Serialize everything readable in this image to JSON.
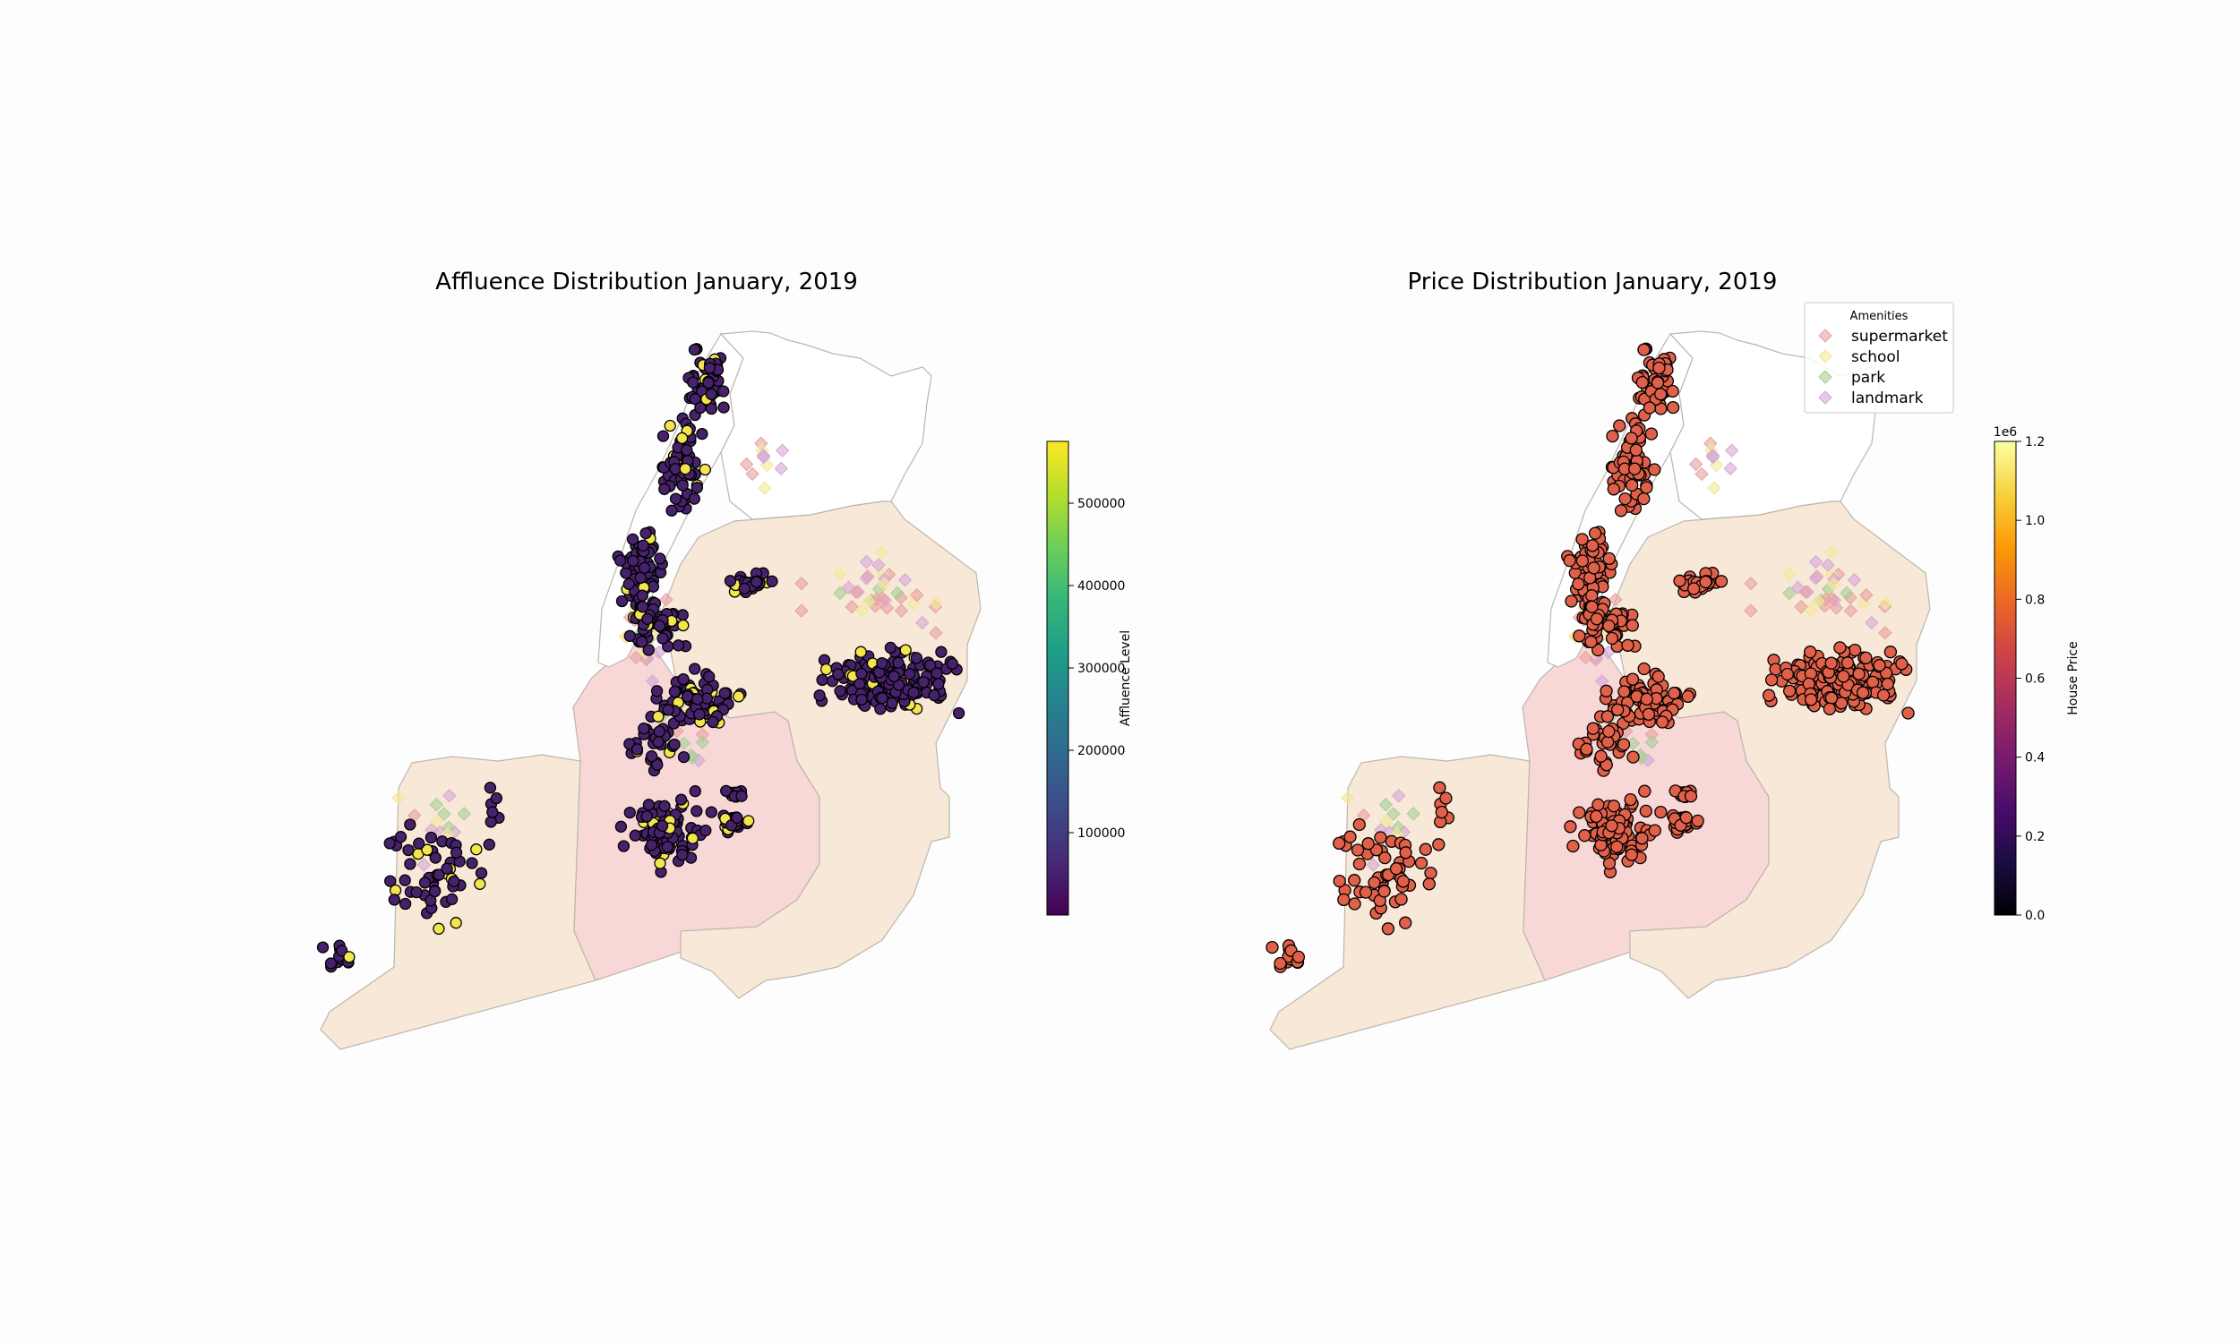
{
  "colors": {
    "background": "#fdfdfd",
    "borough_light": "#f7e8d8",
    "borough_pink": "#f8d7d7",
    "borough_white": "#ffffff",
    "border": "#bdb6ae",
    "point_edge": "#000000",
    "price_point": "#e0604a",
    "affluence_low": "#46226a",
    "affluence_high": "#f3e54c",
    "supermarket": "#e8a0a0",
    "school": "#f3e79a",
    "park": "#a7cf96",
    "landmark": "#d6a6d6"
  },
  "chart_data": [
    {
      "type": "scatter",
      "title": "Affluence Distribution January, 2019",
      "basemap": "New York City boroughs",
      "series": [
        {
          "role": "houses",
          "color_by": "affluence",
          "note": "points colored on viridis scale"
        },
        {
          "role": "amenities",
          "categories": [
            "supermarket",
            "school",
            "park",
            "landmark"
          ],
          "marker": "diamond"
        }
      ],
      "colorbar": {
        "label": "Affluence Level",
        "scale": "viridis",
        "range": [
          0,
          575000
        ],
        "ticks": [
          100000,
          200000,
          300000,
          400000,
          500000
        ],
        "tick_labels": [
          "100000",
          "200000",
          "300000",
          "400000",
          "500000"
        ]
      },
      "axes": "off"
    },
    {
      "type": "scatter",
      "title": "Price Distribution January, 2019",
      "basemap": "New York City boroughs",
      "series": [
        {
          "role": "houses",
          "color_by": "house price"
        },
        {
          "role": "amenities",
          "categories": [
            "supermarket",
            "school",
            "park",
            "landmark"
          ],
          "marker": "diamond"
        }
      ],
      "legend": {
        "title": "Amenities",
        "entries": [
          "supermarket",
          "school",
          "park",
          "landmark"
        ],
        "placement": "top-right"
      },
      "colorbar": {
        "label": "House Price",
        "scale": "inferno",
        "offset_label": "1e6",
        "range": [
          0.0,
          1.2
        ],
        "ticks": [
          0.0,
          0.2,
          0.4,
          0.6,
          0.8,
          1.0,
          1.2
        ],
        "tick_labels": [
          "0.0",
          "0.2",
          "0.4",
          "0.6",
          "0.8",
          "1.0",
          "1.2"
        ]
      },
      "axes": "off"
    }
  ]
}
